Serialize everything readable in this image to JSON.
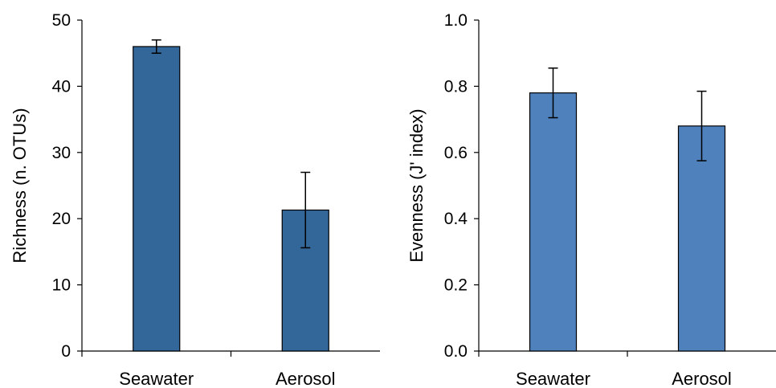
{
  "chart_data": [
    {
      "type": "bar",
      "categories": [
        "Seawater",
        "Aerosol"
      ],
      "values": [
        46,
        21.3
      ],
      "error": [
        1,
        5.7
      ],
      "ylabel": "Richness (n. OTUs)",
      "xlabel": "",
      "ylim": [
        0,
        50
      ],
      "yticks": [
        0,
        10,
        20,
        30,
        40,
        50
      ],
      "ytick_labels": [
        "0",
        "10",
        "20",
        "30",
        "40",
        "50"
      ],
      "bar_color": "#336699",
      "grid": false
    },
    {
      "type": "bar",
      "categories": [
        "Seawater",
        "Aerosol"
      ],
      "values": [
        0.78,
        0.68
      ],
      "error": [
        0.075,
        0.105
      ],
      "ylabel": "Evenness (J' index)",
      "xlabel": "",
      "ylim": [
        0,
        1.0
      ],
      "yticks": [
        0,
        0.2,
        0.4,
        0.6,
        0.8,
        1.0
      ],
      "ytick_labels": [
        "0.0",
        "0.2",
        "0.4",
        "0.6",
        "0.8",
        "1.0"
      ],
      "bar_color": "#4f81bd",
      "grid": false
    }
  ]
}
